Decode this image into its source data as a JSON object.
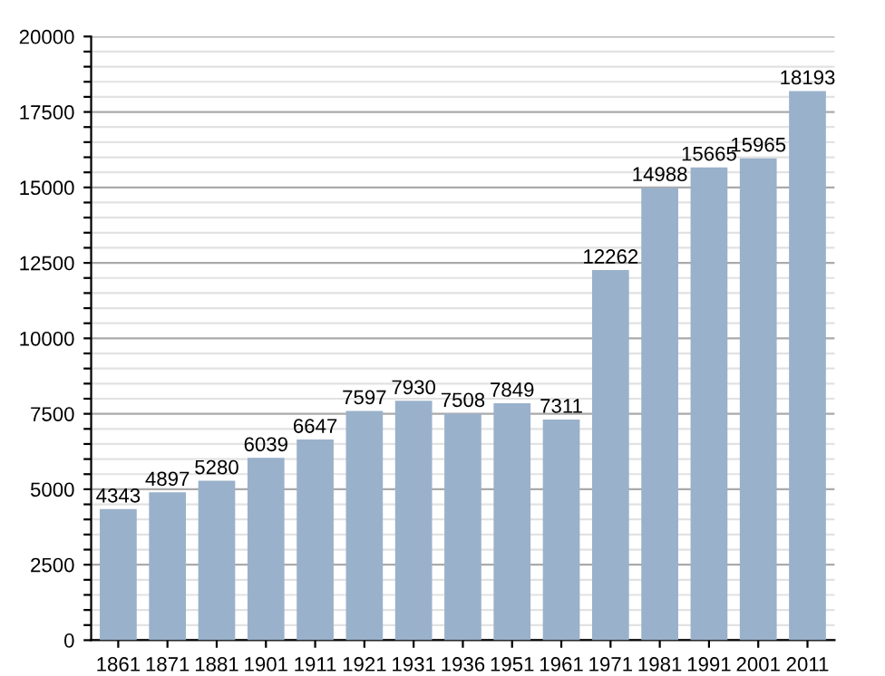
{
  "chart_data": {
    "type": "bar",
    "categories": [
      "1861",
      "1871",
      "1881",
      "1901",
      "1911",
      "1921",
      "1931",
      "1936",
      "1951",
      "1961",
      "1971",
      "1981",
      "1991",
      "2001",
      "2011"
    ],
    "values": [
      4343,
      4897,
      5280,
      6039,
      6647,
      7597,
      7930,
      7508,
      7849,
      7311,
      12262,
      14988,
      15665,
      15965,
      18193
    ],
    "color": "#9ab1cb",
    "data_labels": true,
    "ylim": [
      0,
      20000
    ],
    "yticks": [
      0,
      {
        "value": 500,
        "label": null
      },
      {
        "value": 1000,
        "label": null
      },
      {
        "value": 1500,
        "label": null
      },
      {
        "value": 2000,
        "label": null
      },
      2500,
      {
        "value": 3000,
        "label": null
      },
      {
        "value": 3500,
        "label": null
      },
      {
        "value": 4000,
        "label": null
      },
      {
        "value": 4500,
        "label": null
      },
      5000,
      {
        "value": 5500,
        "label": null
      },
      {
        "value": 6000,
        "label": null
      },
      {
        "value": 6500,
        "label": null
      },
      {
        "value": 7000,
        "label": null
      },
      7500,
      {
        "value": 8000,
        "label": null
      },
      {
        "value": 8500,
        "label": null
      },
      {
        "value": 9000,
        "label": null
      },
      {
        "value": 9500,
        "label": null
      },
      10000,
      {
        "value": 10500,
        "label": null
      },
      {
        "value": 11000,
        "label": null
      },
      {
        "value": 11500,
        "label": null
      },
      {
        "value": 12000,
        "label": null
      },
      12500,
      {
        "value": 13000,
        "label": null
      },
      {
        "value": 13500,
        "label": null
      },
      {
        "value": 14000,
        "label": null
      },
      {
        "value": 14500,
        "label": null
      },
      15000,
      {
        "value": 15500,
        "label": null
      },
      {
        "value": 16000,
        "label": null
      },
      {
        "value": 16500,
        "label": null
      },
      {
        "value": 17000,
        "label": null
      },
      17500,
      {
        "value": 18000,
        "label": null
      },
      {
        "value": 18500,
        "label": null
      },
      {
        "value": 19000,
        "label": null
      },
      {
        "value": 19500,
        "label": null
      },
      20000
    ],
    "grid": "y"
  }
}
